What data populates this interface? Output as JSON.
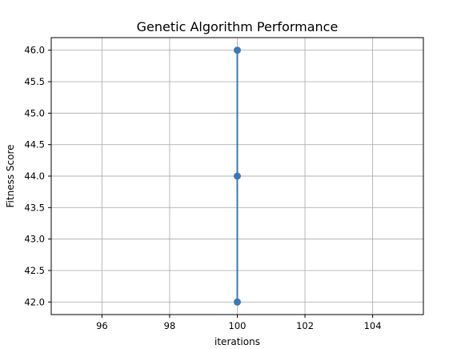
{
  "chart_data": {
    "type": "line",
    "title": "Genetic Algorithm Performance",
    "xlabel": "iterations",
    "ylabel": "Fitness Score",
    "xlim": [
      94.5,
      105.5
    ],
    "ylim": [
      41.8,
      46.2
    ],
    "xticks": [
      96,
      98,
      100,
      102,
      104
    ],
    "xtick_labels": [
      "96",
      "98",
      "100",
      "102",
      "104"
    ],
    "yticks": [
      42.0,
      42.5,
      43.0,
      43.5,
      44.0,
      44.5,
      45.0,
      45.5,
      46.0
    ],
    "ytick_labels": [
      "42.0",
      "42.5",
      "43.0",
      "43.5",
      "44.0",
      "44.5",
      "45.0",
      "45.5",
      "46.0"
    ],
    "grid": true,
    "series": [
      {
        "x": [
          100,
          100,
          100
        ],
        "y": [
          46.0,
          44.0,
          42.0
        ],
        "color": "#3a78b6",
        "marker": "circle"
      }
    ]
  }
}
